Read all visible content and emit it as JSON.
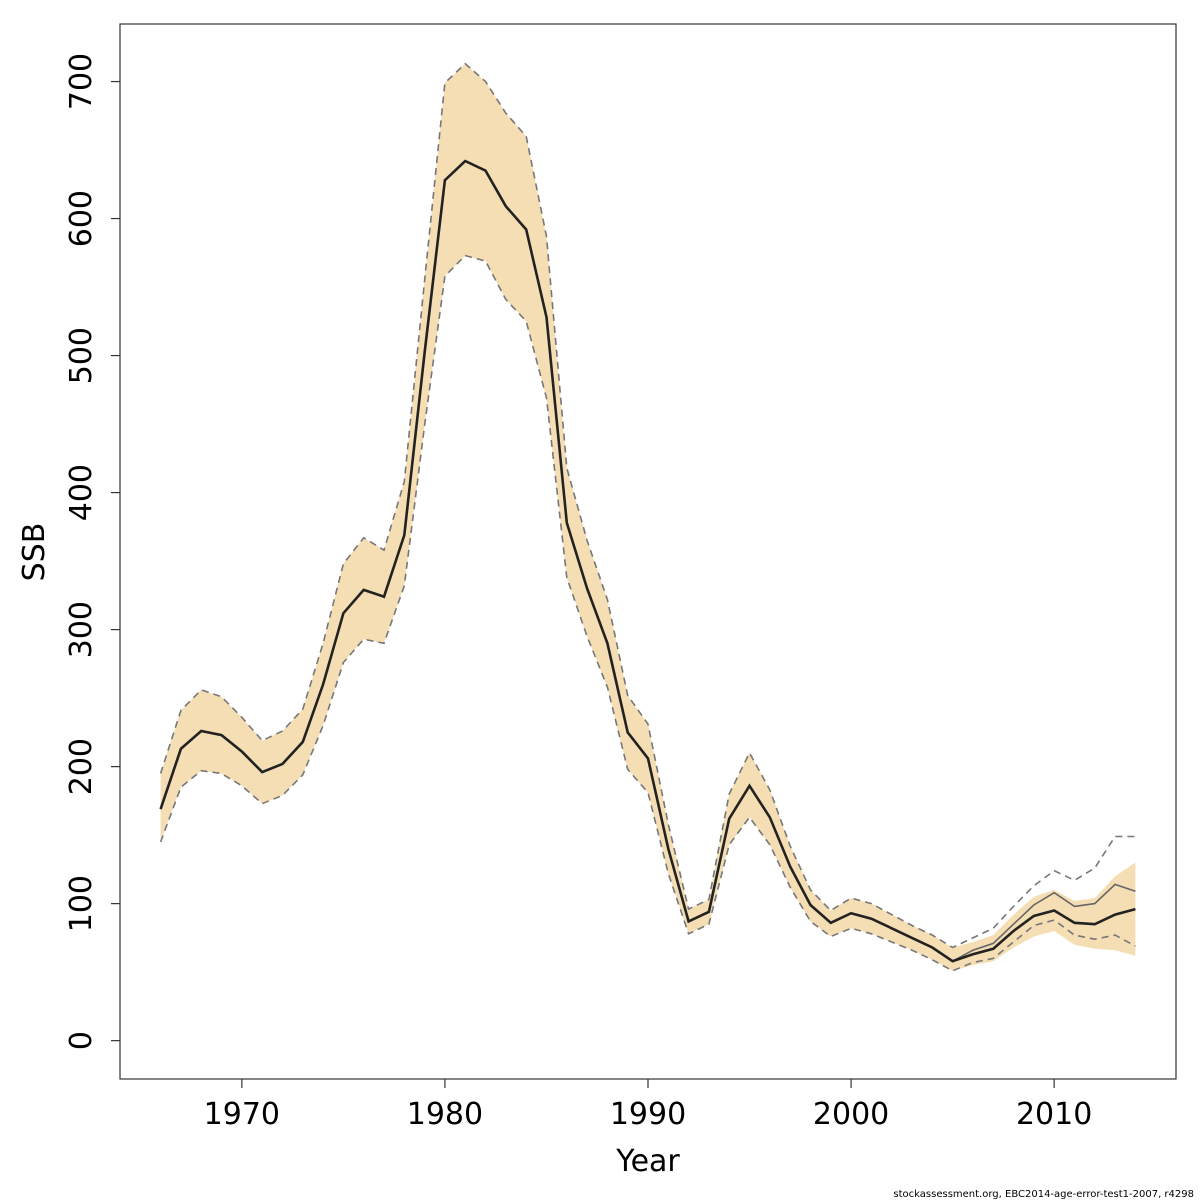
{
  "chart_data": {
    "type": "line",
    "title": "",
    "xlabel": "Year",
    "ylabel": "SSB",
    "xlim": [
      1964,
      2016
    ],
    "ylim": [
      -28,
      742
    ],
    "xticks": [
      1970,
      1980,
      1990,
      2000,
      2010
    ],
    "yticks": [
      0,
      100,
      200,
      300,
      400,
      500,
      600,
      700
    ],
    "grid": false,
    "band_color": "#f5deb3",
    "line_color": "#222222",
    "bound_color": "#777777",
    "x": [
      1966,
      1967,
      1968,
      1969,
      1970,
      1971,
      1972,
      1973,
      1974,
      1975,
      1976,
      1977,
      1978,
      1979,
      1980,
      1981,
      1982,
      1983,
      1984,
      1985,
      1986,
      1987,
      1988,
      1989,
      1990,
      1991,
      1992,
      1993,
      1994,
      1995,
      1996,
      1997,
      1998,
      1999,
      2000,
      2001,
      2002,
      2003,
      2004,
      2005,
      2006,
      2007,
      2008,
      2009,
      2010,
      2011,
      2012,
      2013,
      2014
    ],
    "ssb": [
      169,
      213,
      226,
      223,
      211,
      196,
      202,
      218,
      260,
      312,
      329,
      324,
      369,
      502,
      628,
      642,
      635,
      609,
      592,
      528,
      378,
      330,
      290,
      225,
      206,
      140,
      87,
      94,
      162,
      186,
      163,
      127,
      99,
      86,
      93,
      89,
      82,
      75,
      68,
      58,
      63,
      67,
      80,
      91,
      95,
      86,
      85,
      92,
      96
    ],
    "ssb_alt": [
      169,
      213,
      226,
      223,
      211,
      196,
      202,
      218,
      260,
      312,
      329,
      324,
      369,
      502,
      628,
      642,
      635,
      609,
      592,
      528,
      378,
      330,
      290,
      225,
      206,
      140,
      87,
      94,
      162,
      186,
      163,
      127,
      99,
      86,
      93,
      89,
      82,
      75,
      68,
      58,
      66,
      71,
      85,
      99,
      108,
      98,
      100,
      114,
      109
    ],
    "upper": [
      195,
      241,
      256,
      251,
      236,
      219,
      226,
      242,
      290,
      348,
      367,
      358,
      408,
      555,
      699,
      713,
      700,
      677,
      660,
      587,
      418,
      365,
      322,
      252,
      231,
      158,
      96,
      103,
      180,
      210,
      183,
      142,
      110,
      95,
      104,
      100,
      92,
      84,
      77,
      68,
      75,
      82,
      98,
      113,
      124,
      117,
      126,
      149,
      149
    ],
    "lower": [
      145,
      185,
      197,
      195,
      186,
      173,
      179,
      194,
      230,
      276,
      293,
      290,
      332,
      449,
      558,
      573,
      569,
      541,
      525,
      469,
      338,
      295,
      258,
      198,
      181,
      122,
      78,
      85,
      143,
      163,
      143,
      112,
      87,
      76,
      82,
      78,
      72,
      66,
      59,
      51,
      57,
      60,
      72,
      84,
      88,
      77,
      74,
      77,
      69
    ],
    "band_upper": [
      195,
      241,
      256,
      251,
      236,
      219,
      226,
      242,
      290,
      348,
      367,
      358,
      408,
      555,
      699,
      713,
      700,
      677,
      660,
      587,
      418,
      365,
      322,
      252,
      231,
      158,
      96,
      103,
      180,
      210,
      183,
      142,
      110,
      95,
      104,
      100,
      92,
      84,
      77,
      68,
      72,
      77,
      92,
      105,
      110,
      102,
      104,
      120,
      130
    ],
    "band_lower": [
      145,
      185,
      197,
      195,
      186,
      173,
      179,
      194,
      230,
      276,
      293,
      290,
      332,
      449,
      558,
      573,
      569,
      541,
      525,
      469,
      338,
      295,
      258,
      198,
      181,
      122,
      78,
      85,
      143,
      163,
      143,
      112,
      87,
      76,
      82,
      78,
      72,
      66,
      59,
      51,
      55,
      58,
      68,
      76,
      80,
      70,
      67,
      66,
      62
    ],
    "footnote": "stockassessment.org, EBC2014-age-error-test1-2007, r4298"
  }
}
